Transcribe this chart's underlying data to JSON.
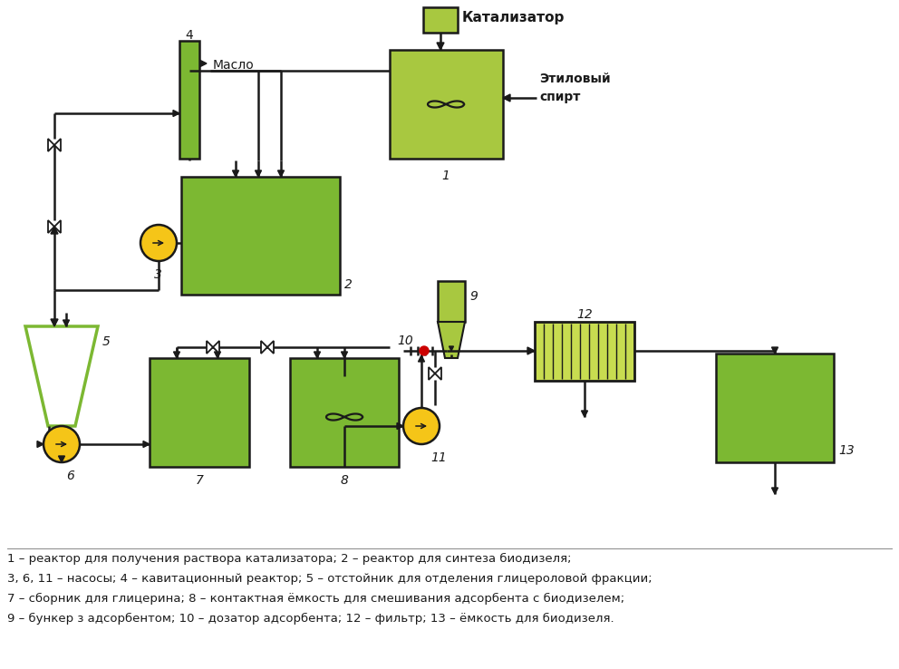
{
  "bg_color": "#ffffff",
  "green_fill": "#7cb832",
  "green_fill2": "#a8c840",
  "green_light": "#c8dc50",
  "yellow_pump": "#f5c518",
  "line_color": "#1a1a1a",
  "red": "#cc0000",
  "caption_fontsize": 9.5,
  "caption_lines": [
    "1 – реактор для получения раствора катализатора; 2 – реактор для синтеза биодизеля;",
    "3, 6, 11 – насосы; 4 – кавитационный реактор; 5 – отстойник для отделения глицероловой фракции;",
    "7 – сборник для глицерина; 8 – контактная ёмкость для смешивания адсорбента с биодизелем;",
    "9 – бункер з адсорбентом; 10 – дозатор адсорбента; 12 – фильтр; 13 – ёмкость для биодизеля."
  ]
}
